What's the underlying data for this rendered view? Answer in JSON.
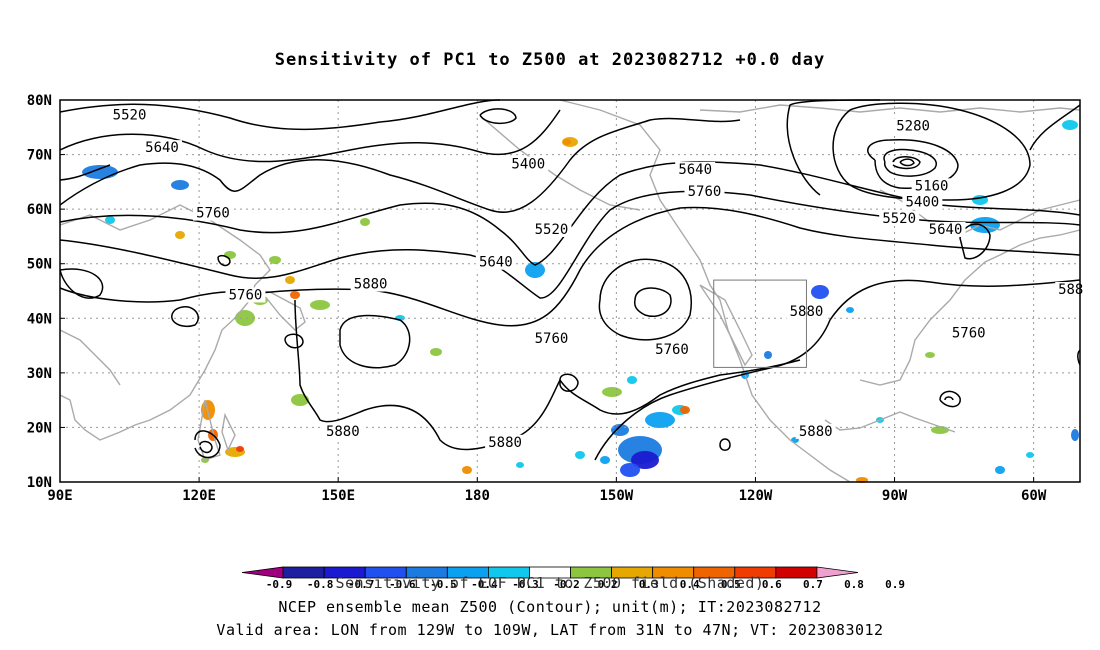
{
  "title": "Sensitivity of PC1 to Z500 at 2023082712 +0.0 day",
  "lat_labels": [
    "80N",
    "70N",
    "60N",
    "50N",
    "40N",
    "30N",
    "20N",
    "10N"
  ],
  "lon_labels": [
    "90E",
    "120E",
    "150E",
    "180",
    "150W",
    "120W",
    "90W",
    "60W"
  ],
  "contour_labels": [
    {
      "text": "5520",
      "lon": 105,
      "lat": 77
    },
    {
      "text": "5640",
      "lon": 112,
      "lat": 71
    },
    {
      "text": "5760",
      "lon": 123,
      "lat": 59
    },
    {
      "text": "5760",
      "lon": 130,
      "lat": 44
    },
    {
      "text": "5880",
      "lon": 157,
      "lat": 46
    },
    {
      "text": "5880",
      "lon": 151,
      "lat": 19
    },
    {
      "text": "5880",
      "lon": -174,
      "lat": 17
    },
    {
      "text": "5400",
      "lon": -169,
      "lat": 68
    },
    {
      "text": "5520",
      "lon": -164,
      "lat": 56
    },
    {
      "text": "5640",
      "lon": -176,
      "lat": 50
    },
    {
      "text": "5760",
      "lon": -164,
      "lat": 36
    },
    {
      "text": "5760",
      "lon": -138,
      "lat": 34
    },
    {
      "text": "5640",
      "lon": -133,
      "lat": 67
    },
    {
      "text": "5760",
      "lon": -131,
      "lat": 63
    },
    {
      "text": "5880",
      "lon": -109,
      "lat": 41
    },
    {
      "text": "5880",
      "lon": -107,
      "lat": 19
    },
    {
      "text": "5280",
      "lon": -86,
      "lat": 75
    },
    {
      "text": "5160",
      "lon": -82,
      "lat": 64
    },
    {
      "text": "5400",
      "lon": -84,
      "lat": 61
    },
    {
      "text": "5520",
      "lon": -89,
      "lat": 58
    },
    {
      "text": "5640",
      "lon": -79,
      "lat": 56
    },
    {
      "text": "5760",
      "lon": -74,
      "lat": 37
    },
    {
      "text": "588",
      "lon": -52,
      "lat": 45
    }
  ],
  "colorbar": {
    "labels": [
      "-0.9",
      "-0.8",
      "-0.7",
      "-0.6",
      "-0.5",
      "-0.4",
      "-0.3",
      "-0.2",
      "0.2",
      "0.3",
      "0.4",
      "0.5",
      "0.6",
      "0.7",
      "0.8",
      "0.9"
    ],
    "colors": [
      "#a0007f",
      "#1e1ea0",
      "#1a1ad0",
      "#2050f0",
      "#1c7be0",
      "#0ca0f0",
      "#10c7ec",
      "#ffffff",
      "#8cc63f",
      "#e6a800",
      "#f08c00",
      "#f06400",
      "#f03c00",
      "#d20000",
      "#f0a0d0"
    ]
  },
  "captions": {
    "line1": "Sensitivity of EOF PC1 to Z500 field (Shaded)",
    "line2": "NCEP ensemble mean Z500 (Contour); unit(m); IT:2023082712",
    "line3": "Valid area: LON from 129W to 109W, LAT from 31N to 47N; VT: 2023083012"
  },
  "valid_box": {
    "lon_min": -129,
    "lon_max": -109,
    "lat_min": 31,
    "lat_max": 47
  }
}
